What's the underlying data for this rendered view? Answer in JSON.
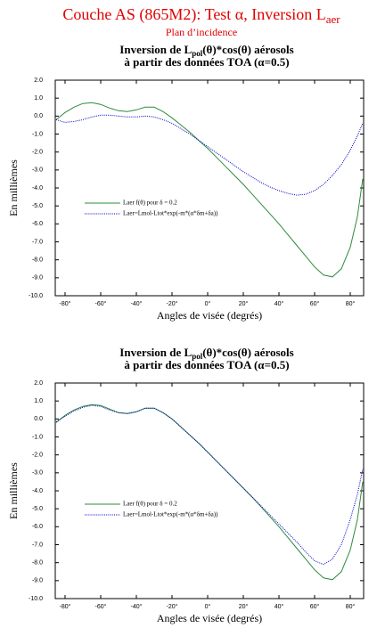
{
  "header": {
    "title": "Couche AS (865M2): Test α, Inversion L",
    "title_subscript": "aer",
    "subtitle": "Plan d’incidence"
  },
  "chart_data": [
    {
      "type": "line",
      "title": [
        "Inversion de L",
        "pol",
        "(θ)*cos(θ) aérosols"
      ],
      "subtitle": "à partir des données TOA (α=0.5)",
      "xlabel": "Angles de visée (degrés)",
      "ylabel": "En millièmes",
      "xlim": [
        -85.5,
        87.5
      ],
      "ylim": [
        -10,
        2
      ],
      "xticks": [
        {
          "value": -80,
          "label": "-80°"
        },
        {
          "value": -60,
          "label": "-60°"
        },
        {
          "value": -40,
          "label": "-40°"
        },
        {
          "value": -20,
          "label": "-20°"
        },
        {
          "value": 0,
          "label": "0°"
        },
        {
          "value": 20,
          "label": "20°"
        },
        {
          "value": 40,
          "label": "40°"
        },
        {
          "value": 60,
          "label": "60°"
        },
        {
          "value": 80,
          "label": "80°"
        }
      ],
      "yticks": [
        {
          "value": -10,
          "label": "-10.0"
        },
        {
          "value": -9,
          "label": "-9.0"
        },
        {
          "value": -8,
          "label": "-8.0"
        },
        {
          "value": -7,
          "label": "-7.0"
        },
        {
          "value": -6,
          "label": "-6.0"
        },
        {
          "value": -5,
          "label": "-5.0"
        },
        {
          "value": -4,
          "label": "-4.0"
        },
        {
          "value": -3,
          "label": "-3.0"
        },
        {
          "value": -2,
          "label": "-2.0"
        },
        {
          "value": -1,
          "label": "-1.0"
        },
        {
          "value": 0,
          "label": "0.0"
        },
        {
          "value": 1,
          "label": "1.0"
        },
        {
          "value": 2,
          "label": "2.0"
        }
      ],
      "x": [
        -85,
        -80,
        -75,
        -70,
        -65,
        -60,
        -55,
        -50,
        -45,
        -40,
        -35,
        -30,
        -25,
        -20,
        -15,
        -10,
        -5,
        0,
        5,
        10,
        15,
        20,
        25,
        30,
        35,
        40,
        45,
        50,
        55,
        60,
        65,
        70,
        75,
        80,
        84,
        87
      ],
      "series": [
        {
          "name": "Laer f(θ) pour δ = 0.2",
          "color": "#2e8b3a",
          "dashed": false,
          "values": [
            -0.2,
            0.2,
            0.5,
            0.7,
            0.75,
            0.65,
            0.45,
            0.3,
            0.25,
            0.35,
            0.5,
            0.5,
            0.25,
            -0.1,
            -0.5,
            -0.9,
            -1.35,
            -1.8,
            -2.3,
            -2.8,
            -3.3,
            -3.8,
            -4.35,
            -4.9,
            -5.45,
            -6.0,
            -6.6,
            -7.2,
            -7.8,
            -8.4,
            -8.85,
            -8.95,
            -8.5,
            -7.3,
            -5.6,
            -3.5
          ]
        },
        {
          "name": "Laer=Lmol-Ltot*exp(-m*(α*δm+δa))",
          "color": "#0000cc",
          "dashed": true,
          "values": [
            -0.2,
            -0.35,
            -0.3,
            -0.2,
            -0.05,
            0.05,
            0.05,
            0.0,
            -0.05,
            -0.05,
            0.0,
            -0.05,
            -0.2,
            -0.4,
            -0.7,
            -1.0,
            -1.35,
            -1.7,
            -2.05,
            -2.4,
            -2.75,
            -3.1,
            -3.4,
            -3.7,
            -3.95,
            -4.15,
            -4.3,
            -4.4,
            -4.35,
            -4.15,
            -3.8,
            -3.3,
            -2.7,
            -1.9,
            -1.1,
            -0.4
          ]
        }
      ]
    },
    {
      "type": "line",
      "title": [
        "Inversion de L",
        "pol",
        "(θ)*cos(θ)  aérosols"
      ],
      "subtitle": "à partir des données TOA (α=0.5)",
      "xlabel": "Angles de visée (degrés)",
      "ylabel": "En millièmes",
      "xlim": [
        -85.5,
        87.5
      ],
      "ylim": [
        -10,
        2
      ],
      "xticks": [
        {
          "value": -80,
          "label": "-80°"
        },
        {
          "value": -60,
          "label": "-60°"
        },
        {
          "value": -40,
          "label": "-40°"
        },
        {
          "value": -20,
          "label": "-20°"
        },
        {
          "value": 0,
          "label": "0°"
        },
        {
          "value": 20,
          "label": "20°"
        },
        {
          "value": 40,
          "label": "40°"
        },
        {
          "value": 60,
          "label": "60°"
        },
        {
          "value": 80,
          "label": "80°"
        }
      ],
      "yticks": [
        {
          "value": -10,
          "label": "-10.0"
        },
        {
          "value": -9,
          "label": "-9.0"
        },
        {
          "value": -8,
          "label": "-8.0"
        },
        {
          "value": -7,
          "label": "-7.0"
        },
        {
          "value": -6,
          "label": "-6.0"
        },
        {
          "value": -5,
          "label": "-5.0"
        },
        {
          "value": -4,
          "label": "-4.0"
        },
        {
          "value": -3,
          "label": "-3.0"
        },
        {
          "value": -2,
          "label": "-2.0"
        },
        {
          "value": -1,
          "label": "-1.0"
        },
        {
          "value": 0,
          "label": "0.0"
        },
        {
          "value": 1,
          "label": "1.0"
        },
        {
          "value": 2,
          "label": "2.0"
        }
      ],
      "x": [
        -85,
        -80,
        -75,
        -70,
        -65,
        -60,
        -55,
        -50,
        -45,
        -40,
        -35,
        -30,
        -25,
        -20,
        -15,
        -10,
        -5,
        0,
        5,
        10,
        15,
        20,
        25,
        30,
        35,
        40,
        45,
        50,
        55,
        60,
        65,
        70,
        75,
        80,
        84,
        87
      ],
      "series": [
        {
          "name": "Laer f(θ) pour δ = 0.2",
          "color": "#2e8b3a",
          "dashed": false,
          "values": [
            -0.2,
            0.2,
            0.5,
            0.7,
            0.8,
            0.75,
            0.55,
            0.35,
            0.3,
            0.4,
            0.6,
            0.6,
            0.35,
            0.0,
            -0.45,
            -0.9,
            -1.35,
            -1.85,
            -2.35,
            -2.85,
            -3.35,
            -3.85,
            -4.35,
            -4.9,
            -5.45,
            -6.0,
            -6.6,
            -7.2,
            -7.8,
            -8.4,
            -8.85,
            -8.95,
            -8.5,
            -7.3,
            -5.6,
            -3.5
          ]
        },
        {
          "name": "Laer=Lmol-Ltot*exp(-m*(α*δm+δa))",
          "color": "#0000cc",
          "dashed": true,
          "values": [
            -0.15,
            0.15,
            0.45,
            0.65,
            0.75,
            0.7,
            0.5,
            0.35,
            0.3,
            0.4,
            0.6,
            0.6,
            0.35,
            0.0,
            -0.45,
            -0.9,
            -1.35,
            -1.85,
            -2.35,
            -2.85,
            -3.35,
            -3.85,
            -4.35,
            -4.85,
            -5.35,
            -5.85,
            -6.35,
            -6.85,
            -7.4,
            -7.9,
            -8.1,
            -7.8,
            -7.0,
            -5.6,
            -4.2,
            -2.8
          ]
        }
      ]
    }
  ]
}
